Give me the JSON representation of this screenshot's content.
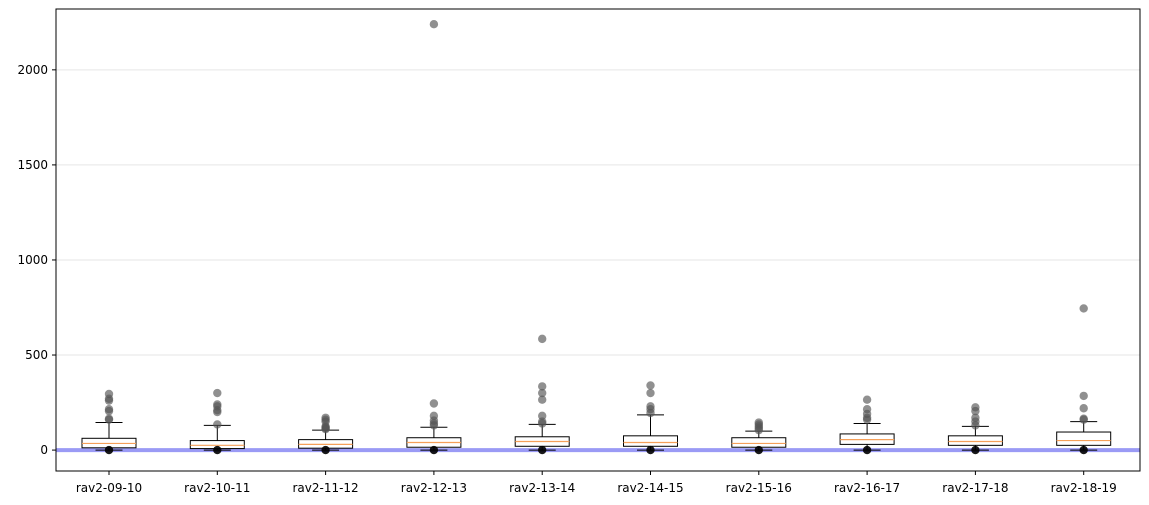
{
  "chart_data": {
    "type": "box",
    "title": "",
    "xlabel": "",
    "ylabel": "",
    "ylim": [
      -110,
      2320
    ],
    "yticks": [
      0,
      500,
      1000,
      1500,
      2000
    ],
    "grid": "horizontal",
    "reference_line": {
      "y": 0,
      "color": "#9a9af5"
    },
    "colors": {
      "box_fill": "#ffffff",
      "box_edge": "#000000",
      "median": "#f5a05a",
      "outlier": "#555555"
    },
    "categories": [
      "rav2-09-10",
      "rav2-10-11",
      "rav2-11-12",
      "rav2-12-13",
      "rav2-13-14",
      "rav2-14-15",
      "rav2-15-16",
      "rav2-16-17",
      "rav2-17-18",
      "rav2-18-19"
    ],
    "boxes": [
      {
        "whislo": 0,
        "q1": 12,
        "med": 35,
        "q3": 62,
        "whishi": 145,
        "fliers_high": [
          160,
          165,
          205,
          215,
          260,
          270,
          295
        ],
        "fliers_low": [
          0
        ]
      },
      {
        "whislo": 0,
        "q1": 8,
        "med": 25,
        "q3": 50,
        "whishi": 130,
        "fliers_high": [
          135,
          200,
          210,
          230,
          240,
          300
        ],
        "fliers_low": [
          0
        ]
      },
      {
        "whislo": 0,
        "q1": 10,
        "med": 30,
        "q3": 55,
        "whishi": 105,
        "fliers_high": [
          110,
          115,
          120,
          125,
          150,
          160,
          170
        ],
        "fliers_low": [
          0
        ]
      },
      {
        "whislo": 0,
        "q1": 15,
        "med": 40,
        "q3": 65,
        "whishi": 120,
        "fliers_high": [
          130,
          140,
          155,
          180,
          245,
          2240
        ],
        "fliers_low": [
          0
        ]
      },
      {
        "whislo": 0,
        "q1": 20,
        "med": 45,
        "q3": 70,
        "whishi": 135,
        "fliers_high": [
          140,
          150,
          180,
          265,
          300,
          335,
          585
        ],
        "fliers_low": [
          0
        ]
      },
      {
        "whislo": 0,
        "q1": 20,
        "med": 40,
        "q3": 75,
        "whishi": 185,
        "fliers_high": [
          195,
          215,
          230,
          300,
          340
        ],
        "fliers_low": [
          0
        ]
      },
      {
        "whislo": 0,
        "q1": 15,
        "med": 35,
        "q3": 65,
        "whishi": 100,
        "fliers_high": [
          105,
          115,
          125,
          135,
          145
        ],
        "fliers_low": [
          0
        ]
      },
      {
        "whislo": 0,
        "q1": 30,
        "med": 55,
        "q3": 85,
        "whishi": 140,
        "fliers_high": [
          160,
          170,
          190,
          215,
          265
        ],
        "fliers_low": [
          0
        ]
      },
      {
        "whislo": 0,
        "q1": 25,
        "med": 45,
        "q3": 75,
        "whishi": 125,
        "fliers_high": [
          130,
          150,
          170,
          205,
          225
        ],
        "fliers_low": [
          0
        ]
      },
      {
        "whislo": 0,
        "q1": 25,
        "med": 50,
        "q3": 95,
        "whishi": 150,
        "fliers_high": [
          160,
          165,
          220,
          285,
          745
        ],
        "fliers_low": [
          0
        ]
      }
    ]
  }
}
